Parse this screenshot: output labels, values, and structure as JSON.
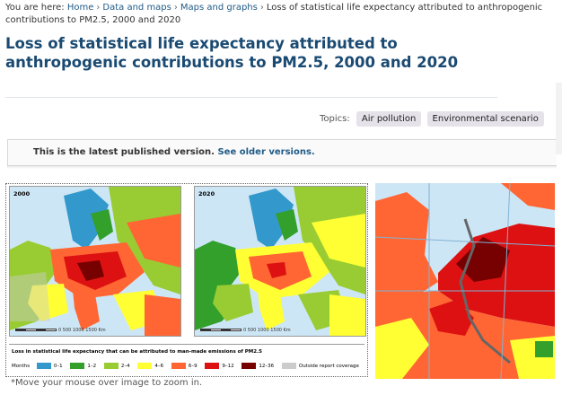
{
  "breadcrumb": {
    "prefix": "You are here:",
    "home": "Home",
    "data_maps": "Data and maps",
    "maps_graphs": "Maps and graphs",
    "current": "Loss of statistical life expectancy attributed to anthropogenic contributions to PM2.5, 2000 and 2020"
  },
  "page_title": "Loss of statistical life expectancy attributed to anthropogenic contributions to PM2.5, 2000 and 2020",
  "topics": {
    "label": "Topics:",
    "tags": [
      "Air pollution",
      "Environmental scenario"
    ]
  },
  "notice": {
    "text": "This is the latest published version.",
    "link": "See older versions."
  },
  "figure": {
    "map_left_year": "2000",
    "map_right_year": "2020",
    "scale_label": "0   500   1000   1500 Km",
    "legend_title": "Loss in statistical life expectancy that can be attributed to man-made emissions of PM2.5",
    "legend_unit": "Months",
    "legend_items": [
      {
        "label": "0–1",
        "color": "#3399cc"
      },
      {
        "label": "1–2",
        "color": "#33a02c"
      },
      {
        "label": "2–4",
        "color": "#99cc33"
      },
      {
        "label": "4–6",
        "color": "#ffff33"
      },
      {
        "label": "6–9",
        "color": "#ff6633"
      },
      {
        "label": "9–12",
        "color": "#dd1111"
      },
      {
        "label": "12–36",
        "color": "#770000"
      },
      {
        "label": "Outside report coverage",
        "color": "#cccccc"
      }
    ]
  },
  "zoom_hint": "*Move your mouse over image to zoom in."
}
